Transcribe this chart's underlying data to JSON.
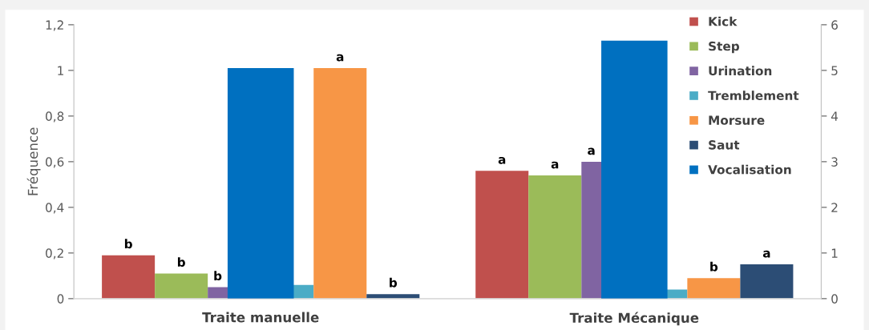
{
  "chart_data": {
    "type": "bar",
    "ylabel": "Fréquence",
    "categories": [
      "Traite manuelle",
      "Traite Mécanique"
    ],
    "series": [
      {
        "name": "Kick",
        "color": "#c0504d",
        "values": [
          0.19,
          0.56
        ],
        "value_labels": [
          "b",
          "a"
        ]
      },
      {
        "name": "Step",
        "color": "#9bbb59",
        "values": [
          0.11,
          0.54
        ],
        "value_labels": [
          "b",
          "a"
        ]
      },
      {
        "name": "Urination",
        "color": "#8064a2",
        "values": [
          0.05,
          0.6
        ],
        "value_labels": [
          "b",
          "a"
        ]
      },
      {
        "name": "Tremblement",
        "color": "#4bacc6",
        "values": [
          0.06,
          0.04
        ]
      },
      {
        "name": "Morsure",
        "color": "#f79646",
        "values": [
          1.01,
          0.09
        ],
        "value_labels": [
          "a",
          "b"
        ]
      },
      {
        "name": "Saut",
        "color": "#2c4d75",
        "values": [
          0.02,
          0.15
        ],
        "value_labels": [
          "b",
          "a"
        ]
      },
      {
        "name": "Vocalisation",
        "color": "#0070c0",
        "values": [
          5.05,
          5.65
        ],
        "axis": "y2"
      }
    ],
    "ylim": [
      0,
      1.2
    ],
    "yticks": [
      0,
      {
        "value": 0.2,
        "label": "0,2"
      },
      {
        "value": 0.4,
        "label": "0,4"
      },
      {
        "value": 0.6,
        "label": "0,6"
      },
      {
        "value": 0.8,
        "label": "0,8"
      },
      1,
      {
        "value": 1.2,
        "label": "1,2"
      }
    ],
    "y2lim": [
      0,
      6
    ],
    "y2ticks": [
      0,
      1,
      2,
      3,
      4,
      5,
      6
    ],
    "grid": false,
    "legend": "top right"
  }
}
